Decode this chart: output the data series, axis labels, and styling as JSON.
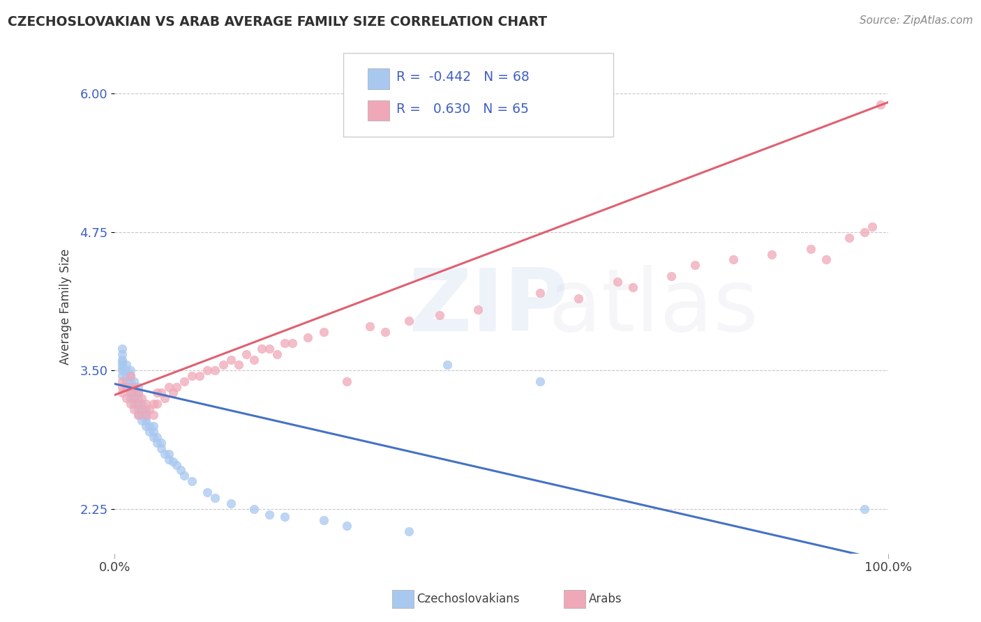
{
  "title": "CZECHOSLOVAKIAN VS ARAB AVERAGE FAMILY SIZE CORRELATION CHART",
  "source": "Source: ZipAtlas.com",
  "ylabel": "Average Family Size",
  "yticks": [
    2.25,
    3.5,
    4.75,
    6.0
  ],
  "xlim": [
    0.0,
    1.0
  ],
  "ylim": [
    1.85,
    6.3
  ],
  "czech_R": "-0.442",
  "czech_N": 68,
  "arab_R": "0.630",
  "arab_N": 65,
  "czech_color": "#A8C8F0",
  "arab_color": "#F0A8B8",
  "czech_line_color": "#4472C4",
  "arab_line_color": "#E06070",
  "background_color": "#FFFFFF",
  "grid_color": "#C8C8C8",
  "title_color": "#303030",
  "axis_label_color": "#4060C0",
  "text_color": "#404040",
  "watermark_zip_color": "#6090D0",
  "watermark_atlas_color": "#B0B0C0",
  "czech_scatter_x": [
    0.01,
    0.01,
    0.01,
    0.01,
    0.01,
    0.01,
    0.01,
    0.01,
    0.015,
    0.015,
    0.015,
    0.015,
    0.015,
    0.02,
    0.02,
    0.02,
    0.02,
    0.02,
    0.02,
    0.025,
    0.025,
    0.025,
    0.025,
    0.025,
    0.03,
    0.03,
    0.03,
    0.03,
    0.03,
    0.03,
    0.035,
    0.035,
    0.035,
    0.035,
    0.04,
    0.04,
    0.04,
    0.04,
    0.04,
    0.045,
    0.045,
    0.05,
    0.05,
    0.05,
    0.055,
    0.055,
    0.06,
    0.06,
    0.065,
    0.07,
    0.07,
    0.075,
    0.08,
    0.085,
    0.09,
    0.1,
    0.12,
    0.13,
    0.15,
    0.18,
    0.2,
    0.22,
    0.27,
    0.3,
    0.38,
    0.43,
    0.55,
    0.97
  ],
  "czech_scatter_y": [
    3.45,
    3.5,
    3.52,
    3.55,
    3.58,
    3.6,
    3.65,
    3.7,
    3.35,
    3.4,
    3.45,
    3.5,
    3.55,
    3.25,
    3.3,
    3.35,
    3.4,
    3.45,
    3.5,
    3.2,
    3.25,
    3.3,
    3.35,
    3.4,
    3.1,
    3.15,
    3.2,
    3.25,
    3.3,
    3.35,
    3.05,
    3.1,
    3.15,
    3.2,
    3.0,
    3.05,
    3.08,
    3.12,
    3.15,
    2.95,
    3.0,
    2.9,
    2.95,
    3.0,
    2.85,
    2.9,
    2.8,
    2.85,
    2.75,
    2.7,
    2.75,
    2.68,
    2.65,
    2.6,
    2.55,
    2.5,
    2.4,
    2.35,
    2.3,
    2.25,
    2.2,
    2.18,
    2.15,
    2.1,
    2.05,
    3.55,
    3.4,
    2.25
  ],
  "arab_scatter_x": [
    0.01,
    0.01,
    0.01,
    0.015,
    0.015,
    0.02,
    0.02,
    0.02,
    0.025,
    0.025,
    0.025,
    0.03,
    0.03,
    0.03,
    0.035,
    0.035,
    0.04,
    0.04,
    0.045,
    0.05,
    0.05,
    0.055,
    0.055,
    0.06,
    0.065,
    0.07,
    0.075,
    0.08,
    0.09,
    0.1,
    0.11,
    0.12,
    0.13,
    0.14,
    0.15,
    0.16,
    0.17,
    0.18,
    0.19,
    0.2,
    0.21,
    0.22,
    0.23,
    0.25,
    0.27,
    0.3,
    0.33,
    0.35,
    0.38,
    0.42,
    0.47,
    0.55,
    0.6,
    0.65,
    0.67,
    0.72,
    0.75,
    0.8,
    0.85,
    0.9,
    0.92,
    0.95,
    0.97,
    0.98,
    0.99
  ],
  "arab_scatter_y": [
    3.3,
    3.35,
    3.4,
    3.25,
    3.35,
    3.2,
    3.3,
    3.45,
    3.15,
    3.25,
    3.35,
    3.1,
    3.2,
    3.3,
    3.15,
    3.25,
    3.1,
    3.2,
    3.15,
    3.1,
    3.2,
    3.2,
    3.3,
    3.3,
    3.25,
    3.35,
    3.3,
    3.35,
    3.4,
    3.45,
    3.45,
    3.5,
    3.5,
    3.55,
    3.6,
    3.55,
    3.65,
    3.6,
    3.7,
    3.7,
    3.65,
    3.75,
    3.75,
    3.8,
    3.85,
    3.4,
    3.9,
    3.85,
    3.95,
    4.0,
    4.05,
    4.2,
    4.15,
    4.3,
    4.25,
    4.35,
    4.45,
    4.5,
    4.55,
    4.6,
    4.5,
    4.7,
    4.75,
    4.8,
    5.9
  ]
}
